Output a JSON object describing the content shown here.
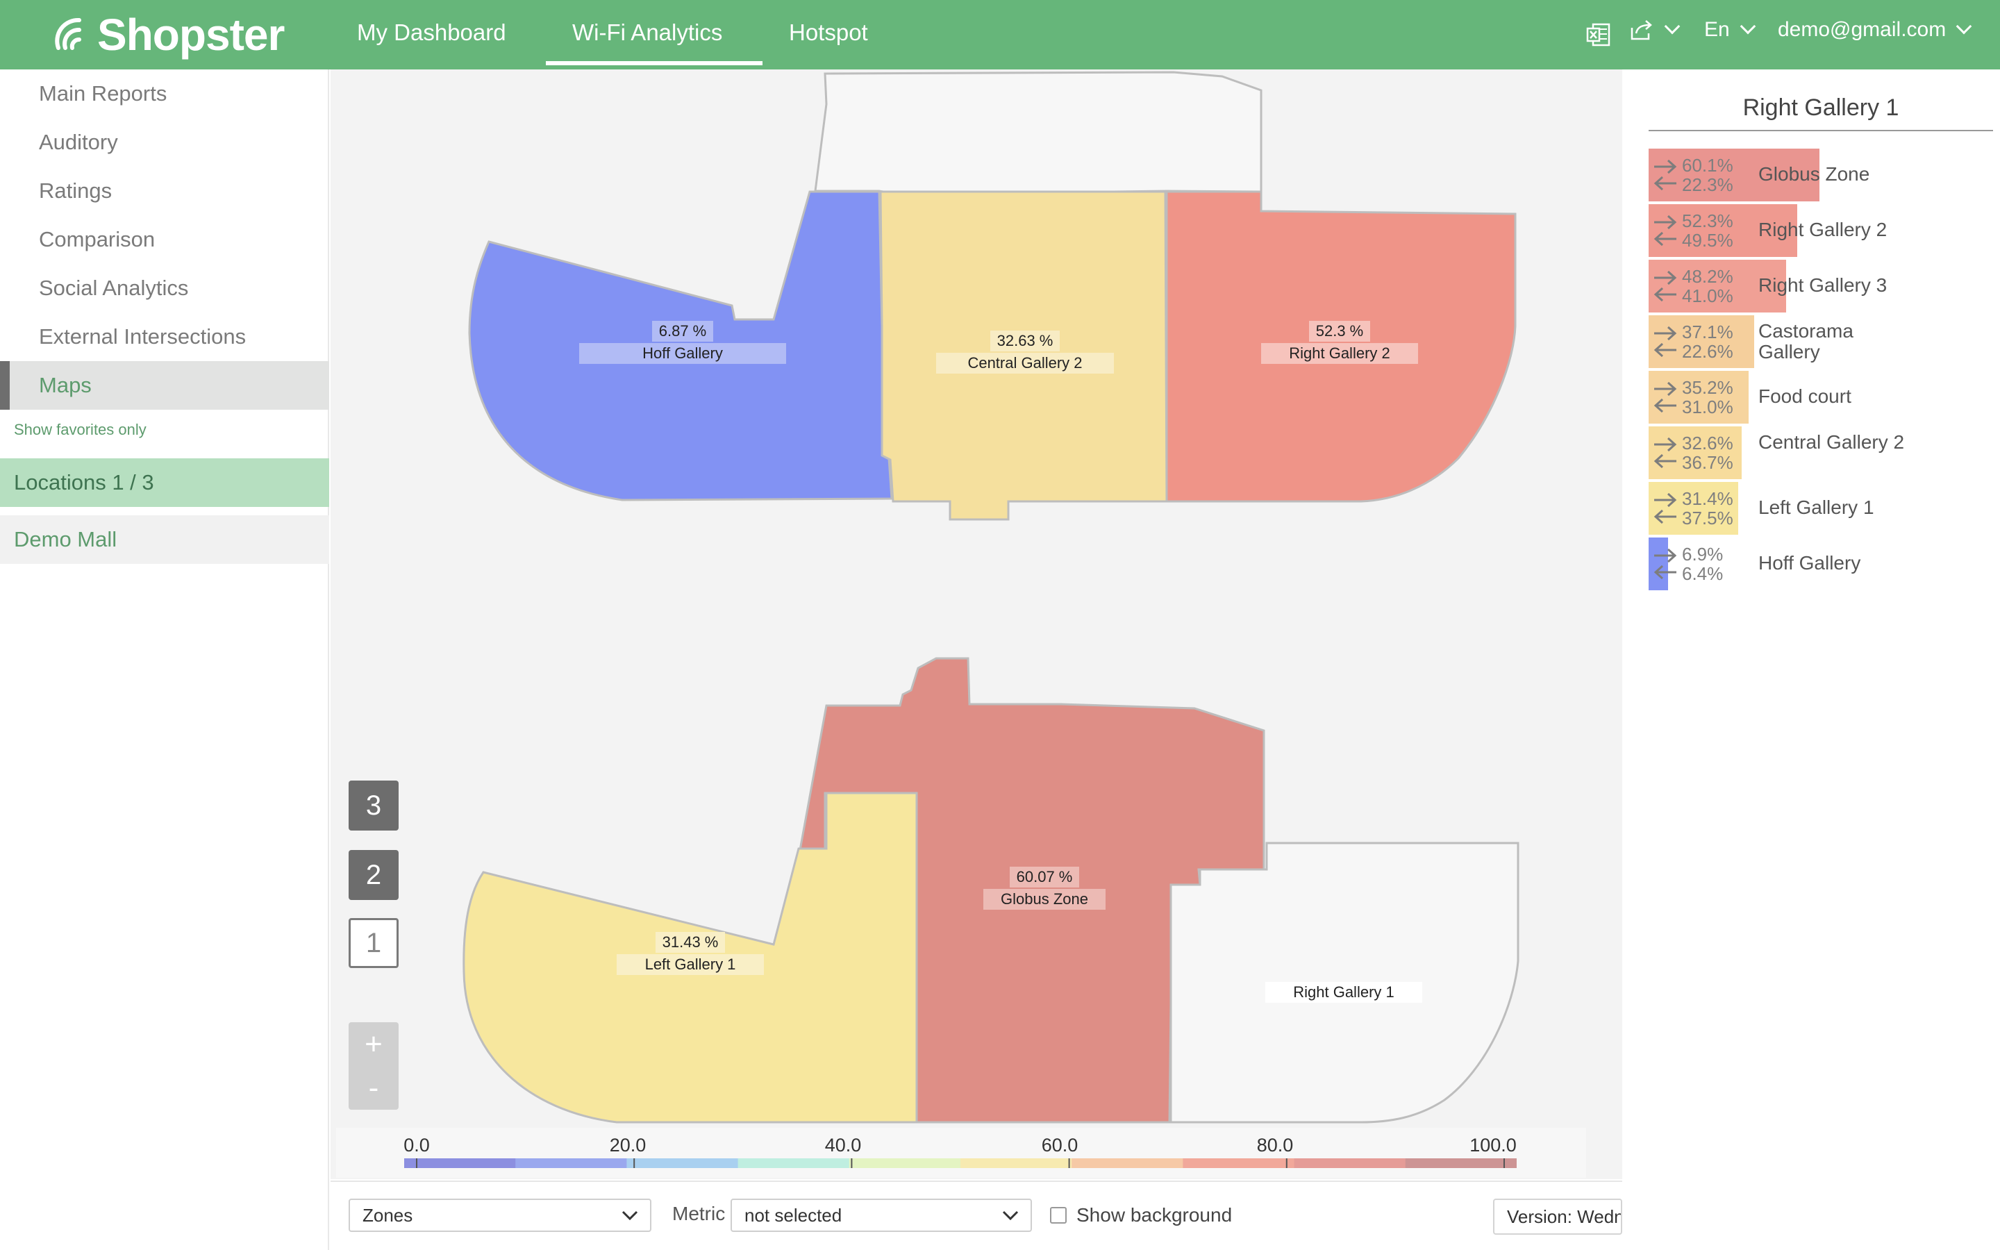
{
  "app": {
    "logo_text": "Shopster"
  },
  "nav": {
    "items": [
      {
        "label": "My Dashboard",
        "active": false
      },
      {
        "label": "Wi-Fi Analytics",
        "active": true
      },
      {
        "label": "Hotspot",
        "active": false
      }
    ]
  },
  "toolbar": {
    "excel_icon": "excel-icon",
    "share_icon": "share-icon",
    "language": "En",
    "user_email": "demo@gmail.com"
  },
  "sidebar": {
    "items": [
      {
        "label": "Main Reports",
        "active": false
      },
      {
        "label": "Auditory",
        "active": false
      },
      {
        "label": "Ratings",
        "active": false
      },
      {
        "label": "Comparison",
        "active": false
      },
      {
        "label": "Social Analytics",
        "active": false
      },
      {
        "label": "External Intersections",
        "active": false
      },
      {
        "label": "Maps",
        "active": true
      }
    ],
    "favorites_link": "Show favorites only",
    "locations_header": "Locations 1 / 3",
    "location_item": "Demo Mall"
  },
  "map": {
    "floors": [
      "3",
      "2",
      "1"
    ],
    "current_floor": "1",
    "zoom_in": "+",
    "zoom_out": "-",
    "upper_floor_zones": [
      {
        "name": "Hoff Gallery",
        "value": "6.87 %",
        "color": "#8292f3"
      },
      {
        "name": "Central Gallery 2",
        "value": "32.63 %",
        "color": "#f5e09e"
      },
      {
        "name": "Right Gallery 2",
        "value": "52.3 %",
        "color": "#ef9488"
      }
    ],
    "lower_floor_zones": [
      {
        "name": "Left Gallery 1",
        "value": "31.43 %",
        "color": "#f7e79e"
      },
      {
        "name": "Globus Zone",
        "value": "60.07 %",
        "color": "#de8e86"
      },
      {
        "name": "Right Gallery 1",
        "value": "",
        "color": "#f7f7f7"
      }
    ],
    "scale_ticks": [
      "0.0",
      "20.0",
      "40.0",
      "60.0",
      "80.0",
      "100.0"
    ],
    "scale_colors": [
      "#8c8fe0",
      "#9aa8ee",
      "#a9d0f0",
      "#bfeee0",
      "#e4f4c2",
      "#f7eab0",
      "#f6c9a6",
      "#f1a89a",
      "#e59c97",
      "#cd9494"
    ]
  },
  "controls": {
    "zones_select": "Zones",
    "metric_label": "Metric",
    "metric_select": "not selected",
    "show_background": "Show background",
    "show_background_checked": false,
    "version": "Version: Wedne"
  },
  "right_panel": {
    "title": "Right Gallery 1",
    "rows": [
      {
        "name": "Globus Zone",
        "out": "60.1%",
        "in": "22.3%",
        "share": 60.1,
        "color": "#e99590"
      },
      {
        "name": "Right Gallery 2",
        "out": "52.3%",
        "in": "49.5%",
        "share": 52.3,
        "color": "#ef9a90"
      },
      {
        "name": "Right Gallery 3",
        "out": "48.2%",
        "in": "41.0%",
        "share": 48.2,
        "color": "#f0a095"
      },
      {
        "name": "Castorama Gallery",
        "out": "37.1%",
        "in": "22.6%",
        "share": 37.1,
        "color": "#f5cf9c"
      },
      {
        "name": "Food court",
        "out": "35.2%",
        "in": "31.0%",
        "share": 35.2,
        "color": "#f6d49e"
      },
      {
        "name": "Central Gallery 2",
        "out": "32.6%",
        "in": "36.7%",
        "share": 32.6,
        "color": "#f7dc9c"
      },
      {
        "name": "Left Gallery 1",
        "out": "31.4%",
        "in": "37.5%",
        "share": 31.4,
        "color": "#f7e69e"
      },
      {
        "name": "Hoff Gallery",
        "out": "6.9%",
        "in": "6.4%",
        "share": 6.9,
        "color": "#8292f3"
      }
    ]
  }
}
